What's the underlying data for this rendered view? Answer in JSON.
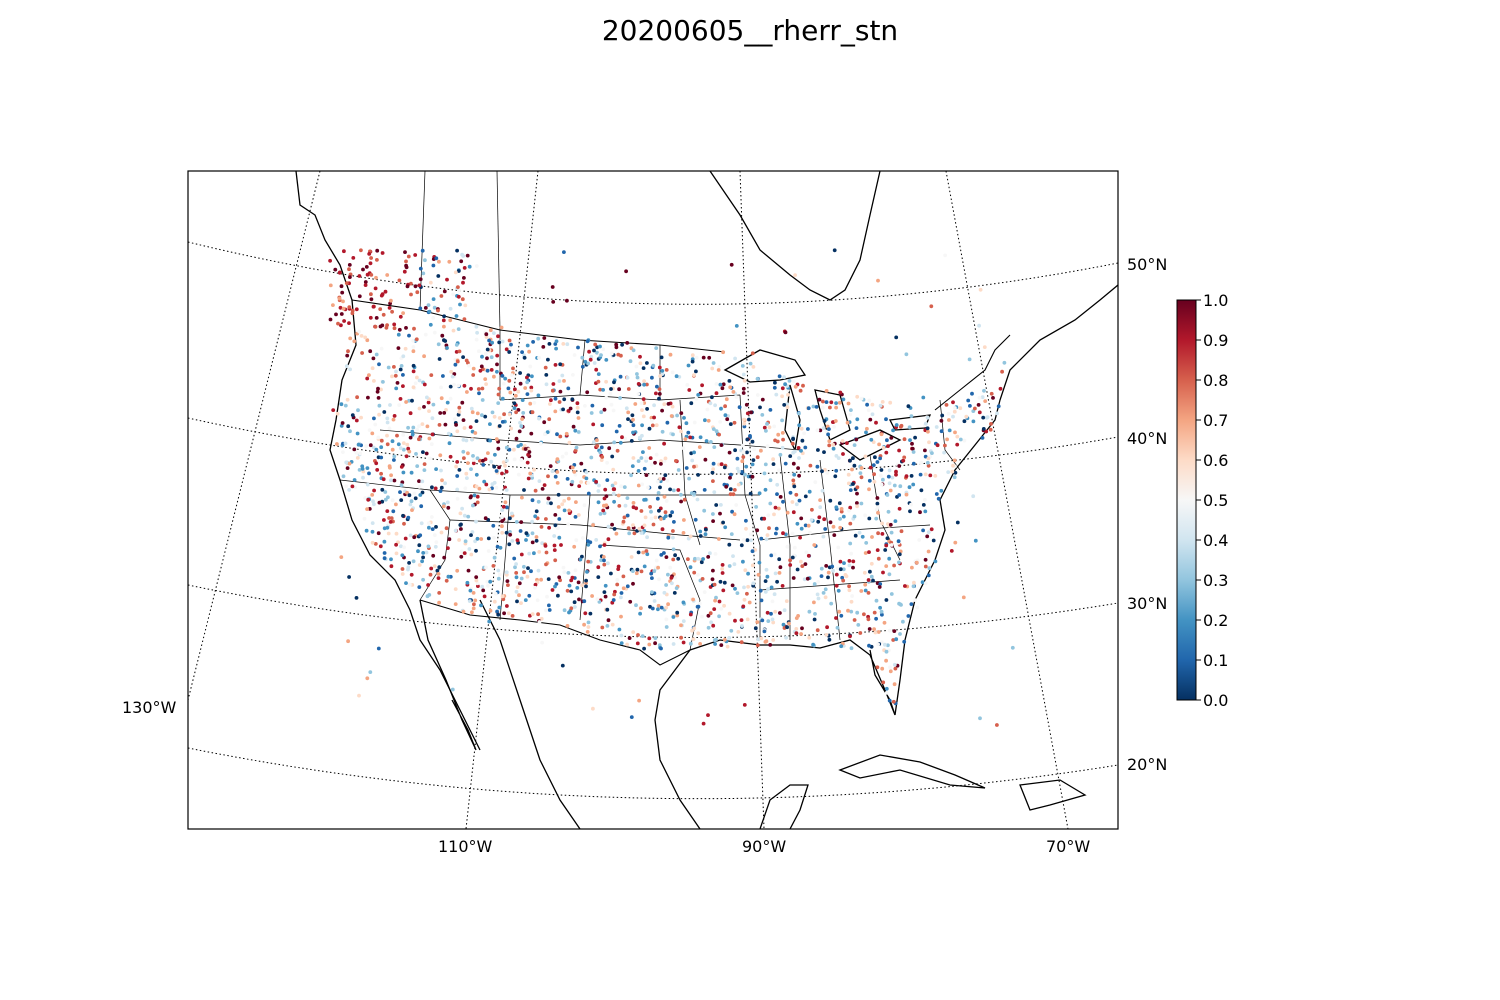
{
  "title": "20200605__rherr_stn",
  "map": {
    "projection": "lambert-conformal",
    "region": "North America (contiguous US)",
    "lat_labels": [
      "50°N",
      "40°N",
      "30°N",
      "20°N"
    ],
    "lon_labels": [
      "130°W",
      "110°W",
      "90°W",
      "70°W"
    ],
    "features": [
      "coastlines",
      "country-borders",
      "state-borders",
      "graticule"
    ]
  },
  "colorbar": {
    "colormap": "RdBu_r",
    "min": 0.0,
    "max": 1.0,
    "ticks": [
      "0.0",
      "0.1",
      "0.2",
      "0.3",
      "0.4",
      "0.5",
      "0.6",
      "0.7",
      "0.8",
      "0.9",
      "1.0"
    ],
    "colors": [
      "#053061",
      "#2166ac",
      "#4393c3",
      "#92c5de",
      "#d1e5f0",
      "#f7f7f7",
      "#fddbc7",
      "#f4a582",
      "#d6604d",
      "#b2182b",
      "#67001f"
    ]
  }
}
